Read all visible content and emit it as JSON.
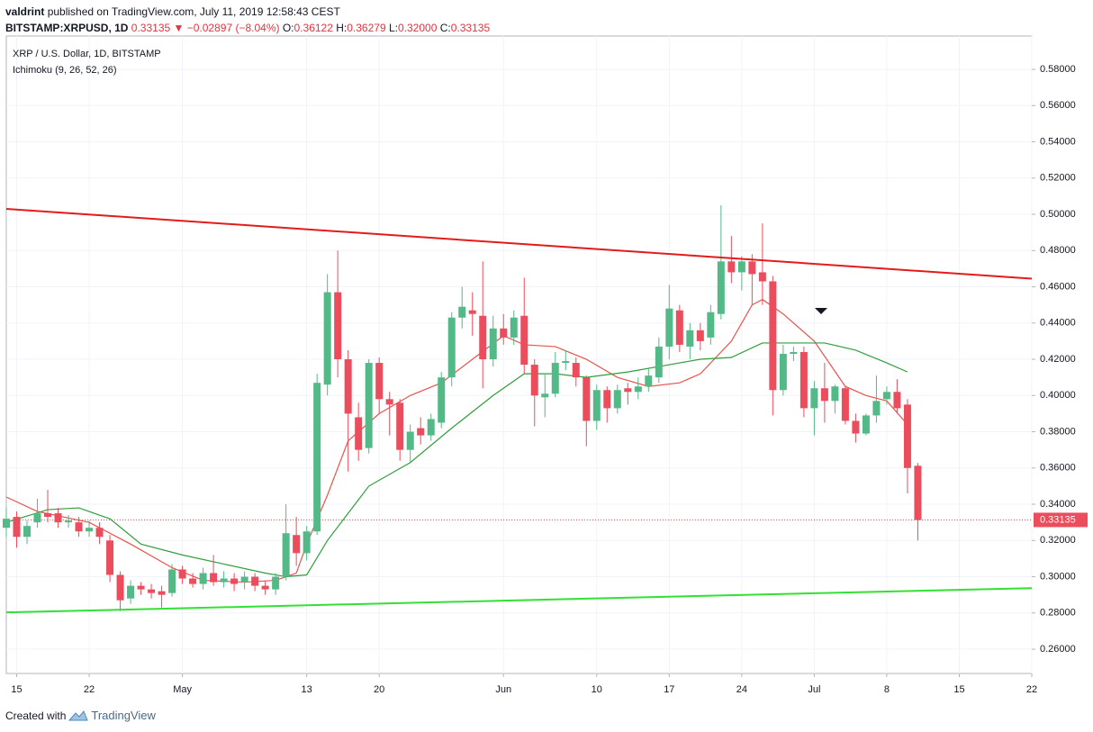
{
  "header": {
    "author": "valdrint",
    "published": "published on TradingView.com, July 11, 2019 12:58:43 CEST",
    "symbol": "BITSTAMP:XRPUSD, 1D",
    "last": "0.33135",
    "change": "▼ −0.02897 (−8.04%)",
    "quote": [
      {
        "label": "O:",
        "value": "0.36122"
      },
      {
        "label": "H:",
        "value": "0.36279"
      },
      {
        "label": "L:",
        "value": "0.32000"
      },
      {
        "label": "C:",
        "value": "0.33135"
      }
    ]
  },
  "footer": {
    "created": "Created with",
    "brand": "TradingView"
  },
  "chart_data": {
    "type": "candlestick",
    "title": "XRP / U.S. Dollar, 1D, BITSTAMP",
    "indicator": "Ichimoku (9, 26, 52, 26)",
    "up_color": "#53b987",
    "down_color": "#eb4d5c",
    "grid": true,
    "x": [
      "04-14",
      "04-15",
      "04-16",
      "04-17",
      "04-18",
      "04-19",
      "04-20",
      "04-21",
      "04-22",
      "04-23",
      "04-24",
      "04-25",
      "04-26",
      "04-27",
      "04-28",
      "04-29",
      "04-30",
      "05-01",
      "05-02",
      "05-03",
      "05-04",
      "05-05",
      "05-06",
      "05-07",
      "05-08",
      "05-09",
      "05-10",
      "05-11",
      "05-12",
      "05-13",
      "05-14",
      "05-15",
      "05-16",
      "05-17",
      "05-18",
      "05-19",
      "05-20",
      "05-21",
      "05-22",
      "05-23",
      "05-24",
      "05-25",
      "05-26",
      "05-27",
      "05-28",
      "05-29",
      "05-30",
      "05-31",
      "06-01",
      "06-02",
      "06-03",
      "06-04",
      "06-05",
      "06-06",
      "06-07",
      "06-08",
      "06-09",
      "06-10",
      "06-11",
      "06-12",
      "06-13",
      "06-14",
      "06-15",
      "06-16",
      "06-17",
      "06-18",
      "06-19",
      "06-20",
      "06-21",
      "06-22",
      "06-23",
      "06-24",
      "06-25",
      "06-26",
      "06-27",
      "06-28",
      "06-29",
      "06-30",
      "07-01",
      "07-02",
      "07-03",
      "07-04",
      "07-05",
      "07-06",
      "07-07",
      "07-08",
      "07-09",
      "07-10",
      "07-11"
    ],
    "open": [
      0.327,
      0.333,
      0.322,
      0.33,
      0.335,
      0.335,
      0.33,
      0.33,
      0.325,
      0.327,
      0.32,
      0.301,
      0.288,
      0.295,
      0.293,
      0.292,
      0.291,
      0.304,
      0.299,
      0.296,
      0.302,
      0.297,
      0.299,
      0.297,
      0.3,
      0.295,
      0.293,
      0.3,
      0.323,
      0.313,
      0.325,
      0.406,
      0.457,
      0.42,
      0.388,
      0.371,
      0.418,
      0.398,
      0.396,
      0.37,
      0.382,
      0.378,
      0.385,
      0.41,
      0.443,
      0.447,
      0.444,
      0.42,
      0.437,
      0.432,
      0.444,
      0.417,
      0.399,
      0.401,
      0.418,
      0.418,
      0.41,
      0.386,
      0.403,
      0.393,
      0.404,
      0.402,
      0.405,
      0.41,
      0.427,
      0.447,
      0.427,
      0.436,
      0.432,
      0.445,
      0.474,
      0.468,
      0.474,
      0.468,
      0.463,
      0.403,
      0.423,
      0.424,
      0.393,
      0.404,
      0.397,
      0.404,
      0.386,
      0.379,
      0.389,
      0.398,
      0.402,
      0.395,
      0.36122
    ],
    "high": [
      0.338,
      0.336,
      0.331,
      0.343,
      0.348,
      0.338,
      0.334,
      0.333,
      0.331,
      0.33,
      0.323,
      0.303,
      0.298,
      0.297,
      0.296,
      0.295,
      0.307,
      0.306,
      0.302,
      0.305,
      0.312,
      0.303,
      0.302,
      0.303,
      0.302,
      0.298,
      0.302,
      0.34,
      0.333,
      0.328,
      0.412,
      0.467,
      0.48,
      0.425,
      0.396,
      0.42,
      0.421,
      0.402,
      0.398,
      0.384,
      0.388,
      0.39,
      0.413,
      0.446,
      0.46,
      0.457,
      0.474,
      0.444,
      0.445,
      0.447,
      0.465,
      0.42,
      0.412,
      0.424,
      0.425,
      0.421,
      0.411,
      0.406,
      0.405,
      0.406,
      0.407,
      0.41,
      0.415,
      0.432,
      0.461,
      0.45,
      0.44,
      0.44,
      0.45,
      0.505,
      0.488,
      0.477,
      0.478,
      0.495,
      0.466,
      0.428,
      0.427,
      0.427,
      0.408,
      0.418,
      0.406,
      0.405,
      0.39,
      0.39,
      0.411,
      0.405,
      0.409,
      0.398,
      0.36279
    ],
    "low": [
      0.322,
      0.316,
      0.318,
      0.327,
      0.33,
      0.327,
      0.327,
      0.322,
      0.322,
      0.318,
      0.297,
      0.281,
      0.285,
      0.29,
      0.288,
      0.283,
      0.289,
      0.296,
      0.294,
      0.293,
      0.295,
      0.294,
      0.292,
      0.293,
      0.292,
      0.29,
      0.29,
      0.298,
      0.306,
      0.309,
      0.323,
      0.4,
      0.41,
      0.358,
      0.364,
      0.368,
      0.39,
      0.378,
      0.364,
      0.363,
      0.373,
      0.375,
      0.382,
      0.405,
      0.437,
      0.433,
      0.404,
      0.416,
      0.428,
      0.428,
      0.412,
      0.383,
      0.388,
      0.399,
      0.414,
      0.405,
      0.372,
      0.381,
      0.385,
      0.39,
      0.395,
      0.398,
      0.402,
      0.407,
      0.42,
      0.424,
      0.42,
      0.425,
      0.428,
      0.442,
      0.462,
      0.458,
      0.45,
      0.45,
      0.389,
      0.4,
      0.419,
      0.388,
      0.378,
      0.385,
      0.39,
      0.384,
      0.374,
      0.378,
      0.385,
      0.395,
      0.39,
      0.346,
      0.32
    ],
    "close": [
      0.332,
      0.322,
      0.328,
      0.335,
      0.333,
      0.33,
      0.331,
      0.325,
      0.327,
      0.322,
      0.301,
      0.287,
      0.295,
      0.293,
      0.291,
      0.29,
      0.304,
      0.299,
      0.296,
      0.302,
      0.297,
      0.299,
      0.296,
      0.3,
      0.295,
      0.293,
      0.3,
      0.324,
      0.313,
      0.325,
      0.407,
      0.457,
      0.42,
      0.39,
      0.37,
      0.418,
      0.398,
      0.395,
      0.37,
      0.38,
      0.378,
      0.387,
      0.41,
      0.443,
      0.449,
      0.445,
      0.42,
      0.437,
      0.432,
      0.443,
      0.417,
      0.4,
      0.401,
      0.418,
      0.419,
      0.41,
      0.386,
      0.403,
      0.393,
      0.403,
      0.402,
      0.405,
      0.411,
      0.427,
      0.448,
      0.428,
      0.436,
      0.43,
      0.446,
      0.474,
      0.468,
      0.474,
      0.467,
      0.463,
      0.403,
      0.423,
      0.424,
      0.393,
      0.404,
      0.397,
      0.405,
      0.386,
      0.379,
      0.389,
      0.397,
      0.402,
      0.393,
      0.36,
      0.33135
    ],
    "lines": [
      {
        "color": "#e8534b",
        "x": [
          "04-14",
          "04-17",
          "04-22",
          "04-26",
          "04-30",
          "05-03",
          "05-07",
          "05-10",
          "05-12",
          "05-13",
          "05-15",
          "05-17",
          "05-20",
          "05-23",
          "05-26",
          "05-29",
          "06-01",
          "06-03",
          "06-06",
          "06-09",
          "06-12",
          "06-15",
          "06-18",
          "06-20",
          "06-23",
          "06-25",
          "06-26",
          "06-28",
          "07-01",
          "07-04",
          "07-06",
          "07-08",
          "07-10"
        ],
        "values": [
          0.344,
          0.336,
          0.33,
          0.318,
          0.305,
          0.298,
          0.297,
          0.298,
          0.302,
          0.318,
          0.345,
          0.375,
          0.39,
          0.4,
          0.407,
          0.42,
          0.433,
          0.428,
          0.427,
          0.42,
          0.41,
          0.405,
          0.407,
          0.412,
          0.43,
          0.45,
          0.453,
          0.445,
          0.43,
          0.405,
          0.4,
          0.397,
          0.384
        ]
      },
      {
        "color": "#2e9e3a",
        "x": [
          "04-14",
          "04-18",
          "04-21",
          "04-24",
          "04-27",
          "05-01",
          "05-05",
          "05-09",
          "05-11",
          "05-13",
          "05-15",
          "05-19",
          "05-23",
          "05-27",
          "05-31",
          "06-03",
          "06-06",
          "06-09",
          "06-13",
          "06-17",
          "06-20",
          "06-23",
          "06-26",
          "06-29",
          "07-02",
          "07-05",
          "07-08",
          "07-10"
        ],
        "values": [
          0.33,
          0.337,
          0.338,
          0.332,
          0.318,
          0.312,
          0.307,
          0.302,
          0.3,
          0.301,
          0.32,
          0.35,
          0.363,
          0.382,
          0.4,
          0.412,
          0.412,
          0.41,
          0.413,
          0.417,
          0.42,
          0.421,
          0.429,
          0.429,
          0.429,
          0.425,
          0.418,
          0.413
        ]
      }
    ],
    "trendlines": [
      {
        "color": "#e31b1b",
        "x": [
          "04-14",
          "07-22"
        ],
        "values": [
          0.503,
          0.4645
        ]
      },
      {
        "color": "#33e033",
        "x": [
          "04-14",
          "07-22"
        ],
        "values": [
          0.2803,
          0.2937
        ]
      }
    ],
    "price_line": {
      "value": 0.33135,
      "label": "0.33135",
      "color": "#eb4d5c"
    },
    "xlim": [
      "04-14",
      "07-22"
    ],
    "xticks": [
      {
        "value": "04-15",
        "label": "15"
      },
      {
        "value": "04-22",
        "label": "22"
      },
      {
        "value": "05-01",
        "label": "May"
      },
      {
        "value": "05-13",
        "label": "13"
      },
      {
        "value": "05-20",
        "label": "20"
      },
      {
        "value": "06-01",
        "label": "Jun"
      },
      {
        "value": "06-10",
        "label": "10"
      },
      {
        "value": "06-17",
        "label": "17"
      },
      {
        "value": "06-24",
        "label": "24"
      },
      {
        "value": "07-01",
        "label": "Jul"
      },
      {
        "value": "07-08",
        "label": "8"
      },
      {
        "value": "07-15",
        "label": "15"
      },
      {
        "value": "07-22",
        "label": "22"
      }
    ],
    "ylim": [
      0.2466,
      0.5984
    ],
    "yticks": [
      {
        "value": 0.26,
        "label": "0.26000"
      },
      {
        "value": 0.28,
        "label": "0.28000"
      },
      {
        "value": 0.3,
        "label": "0.30000"
      },
      {
        "value": 0.32,
        "label": "0.32000"
      },
      {
        "value": 0.34,
        "label": "0.34000"
      },
      {
        "value": 0.36,
        "label": "0.36000"
      },
      {
        "value": 0.38,
        "label": "0.38000"
      },
      {
        "value": 0.4,
        "label": "0.40000"
      },
      {
        "value": 0.42,
        "label": "0.42000"
      },
      {
        "value": 0.44,
        "label": "0.44000"
      },
      {
        "value": 0.46,
        "label": "0.46000"
      },
      {
        "value": 0.48,
        "label": "0.48000"
      },
      {
        "value": 0.5,
        "label": "0.50000"
      },
      {
        "value": 0.52,
        "label": "0.52000"
      },
      {
        "value": 0.54,
        "label": "0.54000"
      },
      {
        "value": 0.56,
        "label": "0.56000"
      },
      {
        "value": 0.58,
        "label": "0.58000"
      }
    ]
  }
}
